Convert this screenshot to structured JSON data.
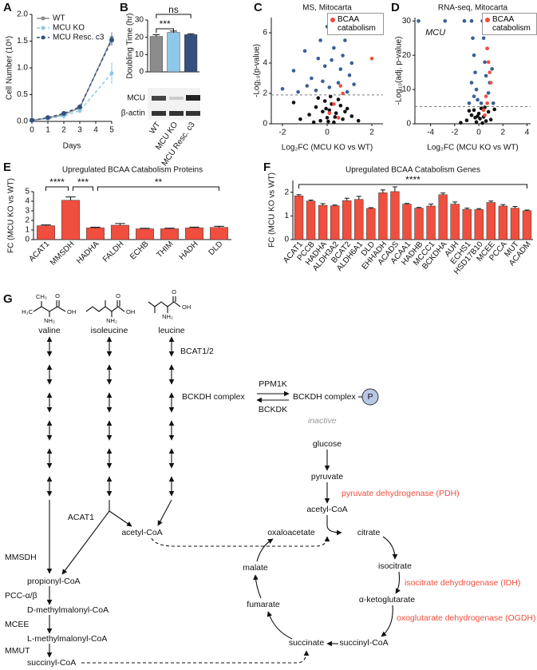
{
  "panel_labels": [
    "A",
    "B",
    "C",
    "D",
    "E",
    "F",
    "G"
  ],
  "chart_data": [
    {
      "type": "line",
      "x_label": "Days",
      "y_label": "Cell Number (10⁶)",
      "x": [
        0,
        1,
        2,
        3,
        5
      ],
      "xlim": [
        0,
        5
      ],
      "xticks": [
        0,
        1,
        2,
        3,
        4,
        5
      ],
      "ylim": [
        0,
        2
      ],
      "yticks": [
        {
          "value": 0,
          "label": "0.0"
        },
        {
          "value": 0.5,
          "label": "0.5"
        },
        {
          "value": 1,
          "label": "1.0"
        },
        {
          "value": 1.5,
          "label": "1.5"
        },
        {
          "value": 2,
          "label": "2.0"
        }
      ],
      "legend": "upper left",
      "series": [
        {
          "name": "WT",
          "color": "#8c8c8c",
          "line_style": "solid",
          "values": [
            0.02,
            0.06,
            0.13,
            0.25,
            1.55
          ],
          "errors": [
            0.01,
            0.01,
            0.02,
            0.03,
            0.12
          ]
        },
        {
          "name": "MCU KO",
          "color": "#8ec8e8",
          "line_style": "dashed",
          "values": [
            0.02,
            0.05,
            0.1,
            0.2,
            0.9
          ],
          "errors": [
            0.01,
            0.01,
            0.02,
            0.03,
            0.2
          ]
        },
        {
          "name": "MCU Resc. c3",
          "color": "#34507f",
          "line_style": "dashed",
          "values": [
            0.02,
            0.07,
            0.15,
            0.27,
            1.52
          ],
          "errors": [
            0.01,
            0.01,
            0.02,
            0.04,
            0.1
          ]
        }
      ]
    },
    {
      "type": "bar",
      "y_label": "Doubling Time (hr)",
      "categories": [
        "WT",
        "MCU KO",
        "MCU Resc. c3"
      ],
      "values": [
        20.5,
        22.8,
        21.5
      ],
      "errors": [
        1.0,
        0.8,
        0.5
      ],
      "colors": [
        "#8c8c8c",
        "#8ec8e8",
        "#34507f"
      ],
      "ylim": [
        0,
        30
      ],
      "yticks": [
        0,
        10,
        20,
        30
      ],
      "significance": [
        "***",
        "ns"
      ],
      "blot_labels": [
        "MCU",
        "β-actin"
      ]
    },
    {
      "type": "scatter",
      "title": "MS, Mitocarta",
      "x_label": "Log₂FC (MCU KO vs WT)",
      "y_label": "-Log₁₀(p-value)",
      "xlim": [
        -2.5,
        2.5
      ],
      "xticks": [
        -2,
        0,
        2
      ],
      "ylim": [
        0,
        7
      ],
      "yticks": [
        0,
        2,
        4,
        6
      ],
      "threshold": 1.9,
      "series": [
        {
          "color": "#111111",
          "x": [
            -1.2,
            -0.8,
            -0.5,
            -0.3,
            -0.1,
            0,
            0.1,
            0.2,
            0.3,
            0.4,
            0.5,
            0.7,
            0.9,
            1.1,
            -0.6,
            -0.2,
            0.15,
            -0.4,
            0.6,
            1.4,
            -1.5,
            0.05,
            0.35,
            -0.05,
            0.8
          ],
          "values": [
            0.3,
            0.6,
            1.1,
            0.2,
            1.5,
            0.4,
            0.9,
            1.3,
            0.1,
            0.7,
            1.6,
            0.3,
            1.0,
            0.5,
            0.1,
            0.8,
            1.8,
            1.7,
            1.2,
            0.2,
            1.4,
            0.15,
            0.45,
            1.0,
            0.8
          ]
        },
        {
          "color": "#3a5f95",
          "x": [
            -2.0,
            -1.5,
            -1.0,
            -0.7,
            -0.5,
            -0.3,
            -0.2,
            -0.1,
            0,
            0.1,
            0.2,
            0.3,
            0.5,
            0.6,
            0.7,
            0.8,
            0.9,
            1.0,
            1.2,
            -0.9,
            -1.3,
            0.4,
            -0.4,
            1.1
          ],
          "values": [
            2.3,
            3.5,
            4.8,
            3.0,
            2.2,
            5.5,
            2.8,
            3.8,
            6.4,
            2.4,
            4.2,
            5.0,
            2.7,
            3.6,
            4.5,
            5.5,
            2.1,
            3.2,
            2.6,
            2.5,
            2.1,
            6.0,
            4.3,
            4.0
          ]
        },
        {
          "name": "BCAA catabolism",
          "color": "#f04e3e",
          "x": [
            0.2,
            2.0,
            0.6,
            0.3,
            0.1,
            0.5,
            0.7
          ],
          "values": [
            6.8,
            4.3,
            2.5,
            1.3,
            0.7,
            0.4,
            2.0
          ]
        }
      ]
    },
    {
      "type": "scatter",
      "title": "RNA-seq, Mitocarta",
      "x_label": "Log₂FC (MCU KO vs WT)",
      "y_label": "-Log₁₀(adj. p-value)",
      "annotation": "MCU",
      "xlim": [
        -5.3,
        4.3
      ],
      "xticks": [
        -4,
        -2,
        0,
        2,
        4
      ],
      "ylim": [
        0,
        31
      ],
      "yticks": [
        0,
        10,
        20,
        30
      ],
      "threshold": 5,
      "series": [
        {
          "color": "#111111",
          "x": [
            -1.0,
            -0.6,
            -0.4,
            -0.2,
            0,
            0.1,
            0.2,
            0.4,
            0.6,
            0.8,
            1.0,
            -1.5,
            0.3,
            -0.1,
            1.3,
            -0.8,
            0.5,
            -0.3
          ],
          "values": [
            1.0,
            2.5,
            4.0,
            0.5,
            3.0,
            1.5,
            4.5,
            2.0,
            0.8,
            3.5,
            1.2,
            0.3,
            0.2,
            2.2,
            4.2,
            3.8,
            4.8,
            1.8
          ]
        },
        {
          "color": "#3a5f95",
          "x": [
            -5.0,
            -2.8,
            -1.2,
            -0.6,
            -0.5,
            -0.4,
            -0.3,
            -0.2,
            -0.1,
            -0.6,
            -0.4,
            0.3,
            0.4,
            0.5,
            0.6,
            0.7,
            0.8,
            1.0,
            1.2,
            1.5,
            0.9,
            -0.8,
            0.2,
            1.1
          ],
          "values": [
            30,
            30,
            30,
            30,
            25,
            20,
            15,
            10,
            7,
            12,
            8,
            30,
            25,
            18,
            14,
            22,
            9,
            30,
            6,
            27,
            12,
            6,
            6,
            16
          ]
        },
        {
          "name": "BCAA catabolism",
          "color": "#f04e3e",
          "x": [
            0.5,
            0.6,
            0.7,
            0.8,
            0.9,
            1.0,
            0.6,
            0.4,
            0.5,
            0.7
          ],
          "values": [
            29.5,
            27,
            22,
            18,
            15,
            12,
            8,
            4,
            2.5,
            6
          ]
        }
      ]
    },
    {
      "type": "bar",
      "title": "Upregulated BCAA Catabolism Proteins",
      "y_label": "FC (MCU KO vs WT)",
      "categories": [
        "ACAT1",
        "MMSDH",
        "HADHA",
        "FALDH",
        "ECHB",
        "THIM",
        "HADH",
        "DLD"
      ],
      "values": [
        1.45,
        4.1,
        1.22,
        1.5,
        1.12,
        1.13,
        1.22,
        1.27
      ],
      "errors": [
        0.08,
        0.35,
        0.07,
        0.18,
        0.06,
        0.06,
        0.08,
        0.12
      ],
      "color": "#f04e3e",
      "ylim": [
        0,
        5
      ],
      "yticks": [
        0,
        1,
        2,
        3,
        4,
        5
      ],
      "significance": [
        "****",
        "***",
        "**"
      ]
    },
    {
      "type": "bar",
      "title": "Upregulated BCAA Catabolism Genes",
      "y_label": "FC (MCU KO vs WT)",
      "categories": [
        "ACAT1",
        "PCCB",
        "HADHA",
        "ALDH3A2",
        "BCAT2",
        "ALDH6A1",
        "DLD",
        "EHHADH",
        "ACADS",
        "ACAA1",
        "HADHB",
        "MCCC1",
        "BCKDHA",
        "AUH",
        "ECHS1",
        "HSD17B10",
        "MCEE",
        "PCCA",
        "MUT",
        "ACADM"
      ],
      "values": [
        1.85,
        1.63,
        1.45,
        1.43,
        1.65,
        1.7,
        1.32,
        1.98,
        2.03,
        1.5,
        1.33,
        1.42,
        1.9,
        1.5,
        1.28,
        1.27,
        1.57,
        1.42,
        1.33,
        1.22
      ],
      "errors": [
        0.05,
        0.04,
        0.07,
        0.03,
        0.1,
        0.13,
        0.03,
        0.12,
        0.2,
        0.03,
        0.03,
        0.08,
        0.07,
        0.09,
        0.05,
        0.04,
        0.06,
        0.06,
        0.07,
        0.03
      ],
      "color": "#f04e3e",
      "ylim": [
        0,
        2.5
      ],
      "yticks": [
        0,
        1,
        2
      ],
      "significance": [
        "****"
      ]
    }
  ],
  "pathway": {
    "amino_acids": [
      {
        "name": "valine",
        "groups": [
          "CH₃",
          "H₃C",
          "O",
          "OH",
          "NH₂"
        ]
      },
      {
        "name": "isoleucine",
        "groups": [
          "O",
          "OH",
          "NH₂"
        ]
      },
      {
        "name": "leucine",
        "groups": [
          "O",
          "OH",
          "NH₂"
        ]
      }
    ],
    "bcat": "BCAT1/2",
    "bckdh": "BCKDH complex",
    "bckdh_inactive": "BCKDH complex",
    "phospho": "P",
    "ppm1k": "PPM1K",
    "bckdk": "BCKDK",
    "inactive": "inactive",
    "glucose": "glucose",
    "pyruvate": "pyruvate",
    "pdh": "pyruvate dehydrogenase (PDH)",
    "acetyl_coa_glucose": "acetyl-CoA",
    "acat1": "ACAT1",
    "acetyl_coa_bcaa": "acetyl-CoA",
    "mmsdh": "MMSDH",
    "propionyl_coa": "propionyl-CoA",
    "pcc": "PCC-α/β",
    "d_methylmalonyl_coa": "D-methylmalonyl-CoA",
    "mcee": "MCEE",
    "l_methylmalonyl_coa": "L-methylmalonyl-CoA",
    "mmut": "MMUT",
    "succinyl_coa_bcaa": "succinyl-CoA",
    "tca": {
      "citrate": "citrate",
      "isocitrate": "isocitrate",
      "idh": "isocitrate dehydrogenase (IDH)",
      "akg": "α-ketoglutarate",
      "ogdh": "oxoglutarate dehydrogenase (OGDH)",
      "succinyl_coa": "succinyl-CoA",
      "succinate": "succinate",
      "fumarate": "fumarate",
      "malate": "malate",
      "oxaloacetate": "oxaloacetate"
    }
  }
}
